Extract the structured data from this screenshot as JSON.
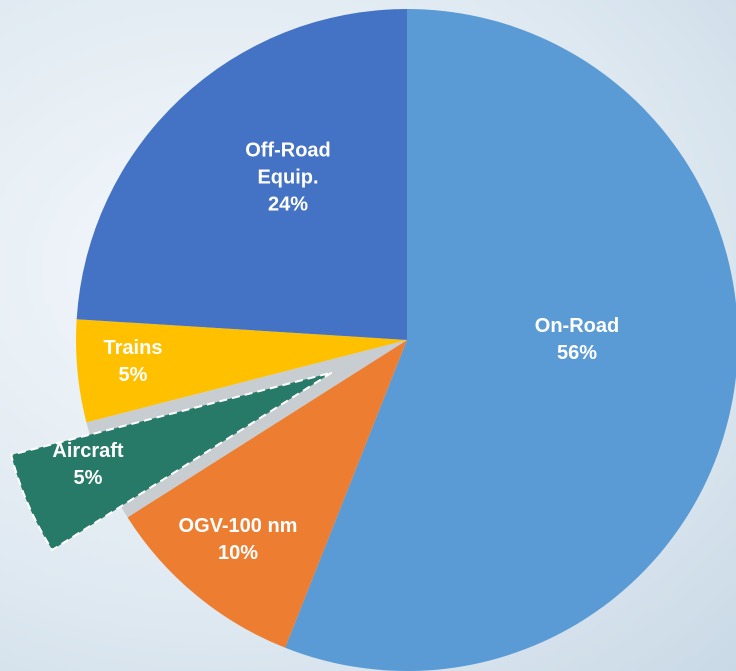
{
  "chart_data": {
    "type": "pie",
    "categories": [
      "On-Road",
      "OGV-100 nm",
      "Aircraft",
      "Trains",
      "Off-Road Equip."
    ],
    "values": [
      56,
      10,
      5,
      5,
      24
    ],
    "value_labels": [
      "56%",
      "10%",
      "5%",
      "5%",
      "24%"
    ],
    "colors": [
      "#5b9bd5",
      "#ed7d31",
      "#287a68",
      "#ffc000",
      "#4472c4"
    ],
    "exploded": [
      false,
      false,
      true,
      false,
      false
    ]
  }
}
